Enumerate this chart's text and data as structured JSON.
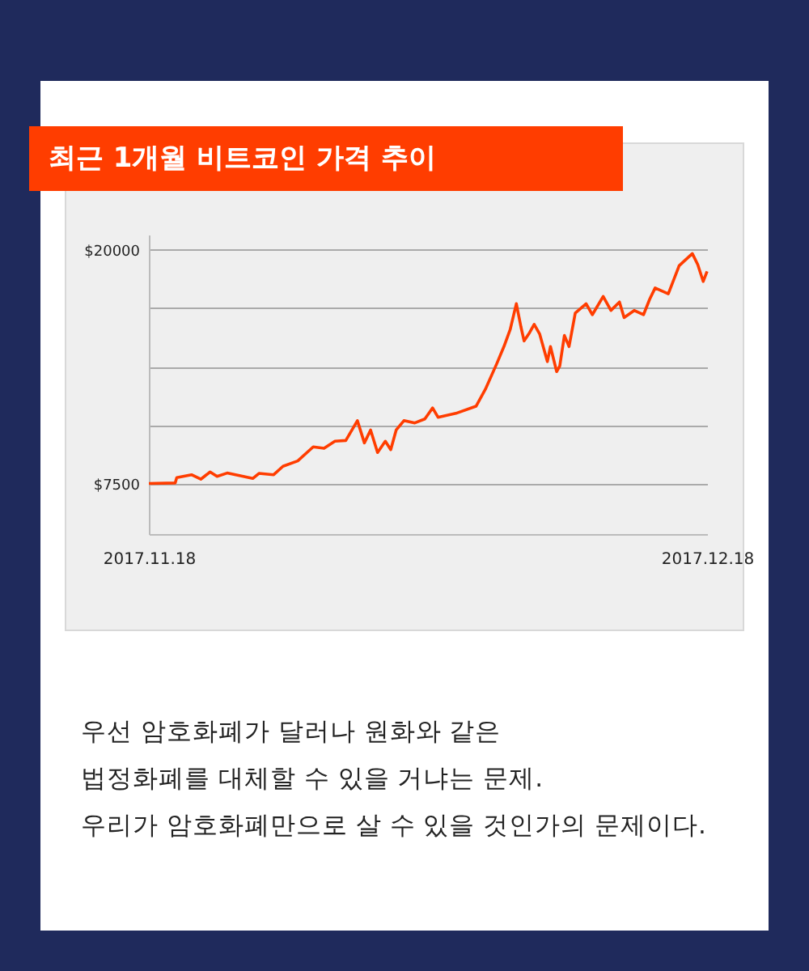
{
  "chart_data": {
    "type": "line",
    "title": "최근 1개월 비트코인 가격 추이",
    "annotations": [
      "우선 암호화폐가 달러나 원화와 같은",
      "법정화폐를 대체할 수 있을 거냐는 문제.",
      "우리가 암호화폐만으로 살 수 있을 것인가의 문제이다."
    ],
    "x": [
      "2017-11-18T00:00",
      "2017-11-19T10:00",
      "2017-11-19T12:00",
      "2017-11-20T07:00",
      "2017-11-20T19:00",
      "2017-11-21T07:00",
      "2017-11-21T16:00",
      "2017-11-22T05:00",
      "2017-11-23T14:00",
      "2017-11-23T22:00",
      "2017-11-24T17:00",
      "2017-11-25T05:00",
      "2017-11-26T00:00",
      "2017-11-26T20:00",
      "2017-11-27T10:00",
      "2017-11-28T00:00",
      "2017-11-28T14:00",
      "2017-11-29T05:00",
      "2017-11-29T14:00",
      "2017-11-29T22:00",
      "2017-11-30T07:00",
      "2017-11-30T17:00",
      "2017-12-01T00:00",
      "2017-12-01T07:00",
      "2017-12-01T17:00",
      "2017-12-02T07:00",
      "2017-12-02T20:00",
      "2017-12-03T06:00",
      "2017-12-03T13:00",
      "2017-12-04T12:00",
      "2017-12-05T14:00",
      "2017-12-06T02:00",
      "2017-12-06T17:00",
      "2017-12-07T02:00",
      "2017-12-07T10:00",
      "2017-12-07T18:00",
      "2017-12-08T00:00",
      "2017-12-08T04:00",
      "2017-12-08T11:00",
      "2017-12-08T17:00",
      "2017-12-09T00:00",
      "2017-12-09T10:00",
      "2017-12-09T14:00",
      "2017-12-09T22:00",
      "2017-12-10T02:00",
      "2017-12-10T08:00",
      "2017-12-10T14:00",
      "2017-12-10T22:00",
      "2017-12-11T12:00",
      "2017-12-11T20:00",
      "2017-12-12T10:00",
      "2017-12-12T20:00",
      "2017-12-13T07:00",
      "2017-12-13T13:00",
      "2017-12-14T02:00",
      "2017-12-14T14:00",
      "2017-12-14T22:00",
      "2017-12-15T05:00",
      "2017-12-15T22:00",
      "2017-12-16T12:00",
      "2017-12-17T05:00",
      "2017-12-17T12:00",
      "2017-12-17T19:00",
      "2017-12-18T00:00"
    ],
    "values": [
      7500,
      7530,
      7820,
      7970,
      7730,
      8120,
      7880,
      8060,
      7770,
      8040,
      7970,
      8420,
      8710,
      9460,
      9380,
      9760,
      9800,
      10860,
      9670,
      10360,
      9160,
      9760,
      9310,
      10360,
      10860,
      10740,
      10950,
      11540,
      11040,
      11250,
      11630,
      12530,
      13930,
      14820,
      15720,
      17110,
      15860,
      15120,
      15560,
      16010,
      15500,
      14020,
      14820,
      13480,
      13780,
      15410,
      14820,
      16610,
      17110,
      16520,
      17500,
      16750,
      17200,
      16370,
      16750,
      16520,
      17350,
      17950,
      17640,
      19140,
      19790,
      19200,
      18300,
      18840
    ],
    "color": "#ff3d00",
    "xlim": [
      "2017-11-18",
      "2017-12-18"
    ],
    "xticks": [
      {
        "value": "2017-11-18",
        "label": "2017.11.18"
      },
      {
        "value": "2017-12-18",
        "label": "2017.12.18"
      }
    ],
    "ylim": [
      4800,
      20800
    ],
    "yticks": [
      {
        "value": 7500,
        "label": "$7500"
      },
      {
        "value": 10625,
        "label": null
      },
      {
        "value": 13750,
        "label": null
      },
      {
        "value": 16875,
        "label": null
      },
      {
        "value": 20000,
        "label": "$20000"
      }
    ],
    "grid": "y"
  }
}
